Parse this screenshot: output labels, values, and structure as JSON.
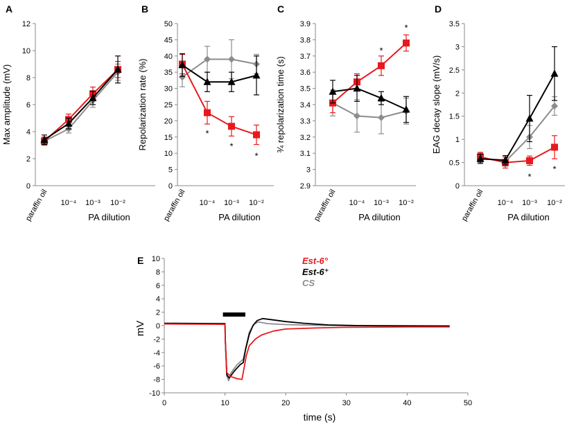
{
  "panels": [
    {
      "letter": "A",
      "ylabel": "Max amplitude (mV)",
      "xlabel": "PA dilution",
      "ylim": [
        0,
        12
      ],
      "yticks": [
        "0",
        "2",
        "4",
        "6",
        "8",
        "10",
        "12"
      ],
      "categories": [
        "paraffin oil",
        "10⁻⁴",
        "10⁻³",
        "10⁻²"
      ],
      "series": [
        {
          "name": "CS",
          "color": "#8c8c8c",
          "marker": "diamond",
          "values": [
            3.3,
            4.2,
            6.3,
            8.4
          ],
          "err": [
            0.3,
            0.3,
            0.5,
            0.6
          ]
        },
        {
          "name": "Est-6°",
          "color": "#e8191d",
          "marker": "square",
          "values": [
            3.3,
            4.9,
            6.8,
            8.6
          ],
          "err": [
            0.3,
            0.4,
            0.5,
            0.6
          ]
        },
        {
          "name": "Est-6⁺",
          "color": "#000000",
          "marker": "triangle",
          "values": [
            3.4,
            4.6,
            6.5,
            8.6
          ],
          "err": [
            0.35,
            0.4,
            0.5,
            1.0
          ]
        }
      ],
      "stars": []
    },
    {
      "letter": "B",
      "ylabel": "Repolarization rate (%)",
      "xlabel": "PA dilution",
      "ylim": [
        0,
        50
      ],
      "yticks": [
        "0",
        "5",
        "10",
        "15",
        "20",
        "25",
        "30",
        "35",
        "40",
        "45",
        "50"
      ],
      "categories": [
        "paraffin oil",
        "10⁻⁴",
        "10⁻³",
        "10⁻²"
      ],
      "series": [
        {
          "name": "CS",
          "color": "#8c8c8c",
          "marker": "diamond",
          "values": [
            33.5,
            39,
            39,
            37.5
          ],
          "err": [
            3,
            4,
            6,
            3
          ]
        },
        {
          "name": "Est-6°",
          "color": "#e8191d",
          "marker": "square",
          "values": [
            37.5,
            22.5,
            18.3,
            15.7
          ],
          "err": [
            3,
            3.5,
            3,
            3
          ]
        },
        {
          "name": "Est-6⁺",
          "color": "#000000",
          "marker": "triangle",
          "values": [
            37.2,
            32,
            32,
            34
          ],
          "err": [
            3.5,
            3,
            3,
            6
          ]
        }
      ],
      "stars": [
        {
          "index": 1,
          "value": 16.5,
          "label": "*"
        },
        {
          "index": 2,
          "value": 12.5,
          "label": "*"
        },
        {
          "index": 3,
          "value": 9.5,
          "label": "*"
        }
      ]
    },
    {
      "letter": "C",
      "ylabel": "¾ repolarization time (s)",
      "xlabel": "PA dilution",
      "ylim": [
        2.9,
        3.9
      ],
      "yticks": [
        "2.9",
        "3",
        "3.1",
        "3.2",
        "3.3",
        "3.4",
        "3.5",
        "3.6",
        "3.7",
        "3.8",
        "3.9"
      ],
      "categories": [
        "paraffin oil",
        "10⁻⁴",
        "10⁻³",
        "10⁻²"
      ],
      "series": [
        {
          "name": "CS",
          "color": "#8c8c8c",
          "marker": "diamond",
          "values": [
            3.41,
            3.33,
            3.32,
            3.36
          ],
          "err": [
            0.08,
            0.1,
            0.1,
            0.08
          ]
        },
        {
          "name": "Est-6°",
          "color": "#e8191d",
          "marker": "square",
          "values": [
            3.41,
            3.54,
            3.64,
            3.78
          ],
          "err": [
            0.06,
            0.05,
            0.06,
            0.05
          ]
        },
        {
          "name": "Est-6⁺",
          "color": "#000000",
          "marker": "triangle",
          "values": [
            3.48,
            3.5,
            3.44,
            3.37
          ],
          "err": [
            0.07,
            0.08,
            0.04,
            0.08
          ]
        }
      ],
      "stars": [
        {
          "index": 2,
          "value": 3.74,
          "label": "*"
        },
        {
          "index": 3,
          "value": 3.88,
          "label": "*"
        }
      ]
    },
    {
      "letter": "D",
      "ylabel": "EAG decay slope (mV/s)",
      "xlabel": "PA dilution",
      "ylim": [
        0,
        3.5
      ],
      "yticks": [
        "0",
        "0.5",
        "1",
        "1.5",
        "2",
        "2.5",
        "3",
        "3.5"
      ],
      "categories": [
        "paraffin oil",
        "10⁻⁴",
        "10⁻³",
        "10⁻²"
      ],
      "series": [
        {
          "name": "CS",
          "color": "#8c8c8c",
          "marker": "diamond",
          "values": [
            0.6,
            0.52,
            1.05,
            1.72
          ],
          "err": [
            0.1,
            0.1,
            0.25,
            0.2
          ]
        },
        {
          "name": "Est-6°",
          "color": "#e8191d",
          "marker": "square",
          "values": [
            0.62,
            0.5,
            0.54,
            0.83
          ],
          "err": [
            0.1,
            0.12,
            0.1,
            0.25
          ]
        },
        {
          "name": "Est-6⁺",
          "color": "#000000",
          "marker": "triangle",
          "values": [
            0.58,
            0.55,
            1.45,
            2.42
          ],
          "err": [
            0.1,
            0.1,
            0.5,
            0.58
          ]
        }
      ],
      "stars": [
        {
          "index": 2,
          "value": 0.22,
          "label": "*"
        },
        {
          "index": 3,
          "value": 0.38,
          "label": "*"
        }
      ]
    }
  ],
  "traces": {
    "letter": "E",
    "ylabel": "mV",
    "xlabel": "time (s)",
    "xlim": [
      0,
      50
    ],
    "ylim": [
      -10,
      10
    ],
    "xticks": [
      "0",
      "10",
      "20",
      "30",
      "40",
      "50"
    ],
    "yticks": [
      "-10",
      "-8",
      "-6",
      "-4",
      "-2",
      "0",
      "2",
      "4",
      "6",
      "8",
      "10"
    ],
    "stimulus": [
      10,
      13
    ],
    "legend": [
      {
        "name": "Est-6°",
        "color": "#e8191d"
      },
      {
        "name": "Est-6⁺",
        "color": "#000000"
      },
      {
        "name": "CS",
        "color": "#8c8c8c"
      }
    ],
    "series": [
      {
        "name": "CS",
        "color": "#8c8c8c",
        "points": [
          [
            0,
            0.3
          ],
          [
            10,
            0.3
          ],
          [
            10.05,
            -2
          ],
          [
            10.3,
            -7.5
          ],
          [
            10.6,
            -8.2
          ],
          [
            11,
            -7
          ],
          [
            12,
            -5.8
          ],
          [
            13,
            -5
          ],
          [
            13.5,
            -3
          ],
          [
            14,
            -1
          ],
          [
            14.8,
            0.25
          ],
          [
            15.5,
            0.55
          ],
          [
            17,
            0.3
          ],
          [
            20,
            0.15
          ],
          [
            25,
            0.05
          ],
          [
            30,
            0
          ],
          [
            40,
            0
          ],
          [
            47,
            -0.05
          ]
        ]
      },
      {
        "name": "Est-6⁺",
        "color": "#000000",
        "points": [
          [
            0,
            0.35
          ],
          [
            10,
            0.3
          ],
          [
            10.05,
            -2
          ],
          [
            10.3,
            -7.3
          ],
          [
            10.7,
            -7.8
          ],
          [
            11.5,
            -6.8
          ],
          [
            12.5,
            -5.8
          ],
          [
            13,
            -5.5
          ],
          [
            13.4,
            -3.5
          ],
          [
            14,
            -1.3
          ],
          [
            14.6,
            0
          ],
          [
            15.3,
            0.75
          ],
          [
            16.2,
            1.05
          ],
          [
            18,
            0.85
          ],
          [
            20,
            0.6
          ],
          [
            23,
            0.35
          ],
          [
            27,
            0.1
          ],
          [
            32,
            0
          ],
          [
            40,
            -0.05
          ],
          [
            47,
            -0.05
          ]
        ]
      },
      {
        "name": "Est-6°",
        "color": "#e8191d",
        "points": [
          [
            0,
            0.25
          ],
          [
            10,
            0.2
          ],
          [
            10.05,
            -2
          ],
          [
            10.3,
            -7
          ],
          [
            11,
            -7.6
          ],
          [
            12,
            -7.9
          ],
          [
            12.8,
            -8
          ],
          [
            13.1,
            -6.5
          ],
          [
            13.5,
            -4.5
          ],
          [
            14,
            -3
          ],
          [
            15,
            -2
          ],
          [
            16,
            -1.4
          ],
          [
            18,
            -0.8
          ],
          [
            20,
            -0.5
          ],
          [
            25,
            -0.35
          ],
          [
            30,
            -0.25
          ],
          [
            40,
            -0.2
          ],
          [
            47,
            -0.2
          ]
        ]
      }
    ]
  }
}
